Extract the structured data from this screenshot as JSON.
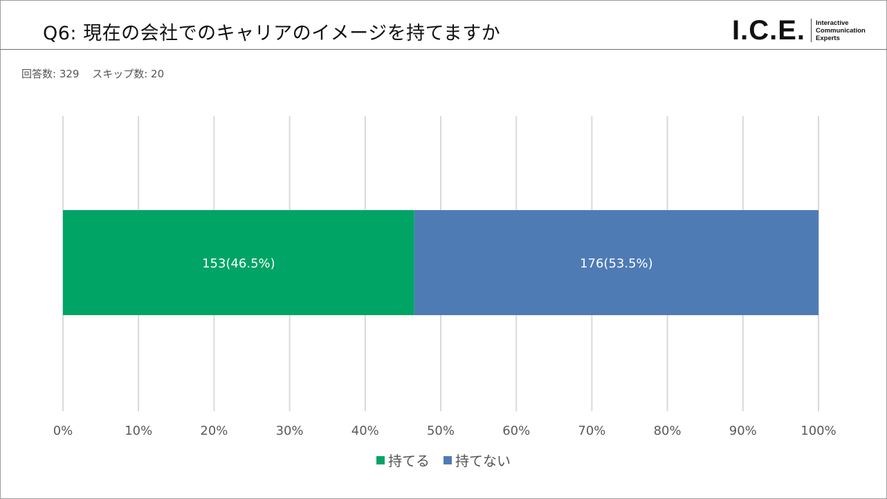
{
  "header": {
    "title": "Q6: 現在の会社でのキャリアのイメージを持てますか",
    "logo": {
      "mark": "I.C.E.",
      "lines": [
        "Interactive",
        "Communication",
        "Experts"
      ]
    }
  },
  "meta": {
    "responses": "回答数: 329",
    "skips": "スキップ数: 20"
  },
  "colors": {
    "series1": "#00a465",
    "series2": "#4f7bb5",
    "grid": "#d9d9d9",
    "tick": "#595959"
  },
  "chart_data": {
    "type": "bar",
    "orientation": "horizontal",
    "stacked": true,
    "normalized": true,
    "xlim": [
      0,
      100
    ],
    "x_tick_labels": [
      "0%",
      "10%",
      "20%",
      "30%",
      "40%",
      "50%",
      "60%",
      "70%",
      "80%",
      "90%",
      "100%"
    ],
    "grid": true,
    "legend_position": "bottom",
    "series": [
      {
        "name": "持てる",
        "count": 153,
        "percent": 46.5,
        "label": "153(46.5%)",
        "color": "#00a465"
      },
      {
        "name": "持てない",
        "count": 176,
        "percent": 53.5,
        "label": "176(53.5%)",
        "color": "#4f7bb5"
      }
    ]
  }
}
